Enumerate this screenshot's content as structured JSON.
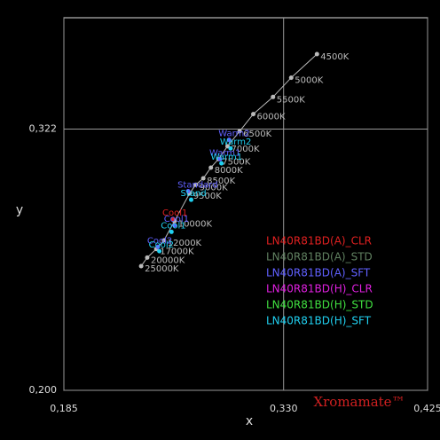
{
  "chart_data": {
    "type": "scatter",
    "xlabel": "x",
    "ylabel": "y",
    "watermark": "Xromamate™",
    "xlim": [
      0.185,
      0.425
    ],
    "ylim": [
      0.2,
      0.374
    ],
    "xticks": [
      {
        "value": 0.185,
        "label": "0,185"
      },
      {
        "value": 0.33,
        "label": "0,330"
      },
      {
        "value": 0.425,
        "label": "0,425"
      }
    ],
    "yticks": [
      {
        "value": 0.2,
        "label": "0,200"
      },
      {
        "value": 0.322,
        "label": "0,322"
      }
    ],
    "grid": true,
    "reference": {
      "color": "#bbbbbb",
      "labels": [
        "4500K",
        "5000K",
        "5500K",
        "6000K",
        "6500K",
        "7000K",
        "7500K",
        "8000K",
        "8500K",
        "9000K",
        "9500K",
        "10000K",
        "12000K",
        "17000K",
        "20000K",
        "25000K"
      ],
      "x": [
        0.352,
        0.335,
        0.323,
        0.31,
        0.301,
        0.293,
        0.287,
        0.282,
        0.277,
        0.272,
        0.268,
        0.258,
        0.251,
        0.246,
        0.24,
        0.236
      ],
      "y": [
        0.357,
        0.346,
        0.337,
        0.329,
        0.321,
        0.314,
        0.308,
        0.304,
        0.299,
        0.296,
        0.292,
        0.279,
        0.27,
        0.266,
        0.262,
        0.258
      ]
    },
    "series": [
      {
        "name": "LN40R81BD(A)_CLR",
        "color": "#e02020",
        "labels": [
          "Cool1"
        ],
        "x": [
          0.257
        ],
        "y": [
          0.28
        ]
      },
      {
        "name": "LN40R81BD(A)_STD",
        "color": "#608060",
        "labels": [],
        "x": [],
        "y": []
      },
      {
        "name": "LN40R81BD(A)_SFT",
        "color": "#6060ff",
        "labels": [
          "Warm2",
          "Warm1",
          "Standard",
          "Cool1",
          "Cool2"
        ],
        "x": [
          0.294,
          0.288,
          0.267,
          0.258,
          0.247
        ],
        "y": [
          0.317,
          0.308,
          0.293,
          0.277,
          0.267
        ]
      },
      {
        "name": "LN40R81BD(H)_CLR",
        "color": "#e020e0",
        "labels": [],
        "x": [],
        "y": []
      },
      {
        "name": "LN40R81BD(H)_STD",
        "color": "#40e040",
        "labels": [],
        "x": [],
        "y": []
      },
      {
        "name": "LN40R81BD(H)_SFT",
        "color": "#20d0f0",
        "labels": [
          "Warm2",
          "Warm1",
          "Stand",
          "Cool1",
          "Cool2"
        ],
        "x": [
          0.295,
          0.289,
          0.269,
          0.256,
          0.248
        ],
        "y": [
          0.313,
          0.306,
          0.289,
          0.274,
          0.265
        ]
      }
    ]
  }
}
